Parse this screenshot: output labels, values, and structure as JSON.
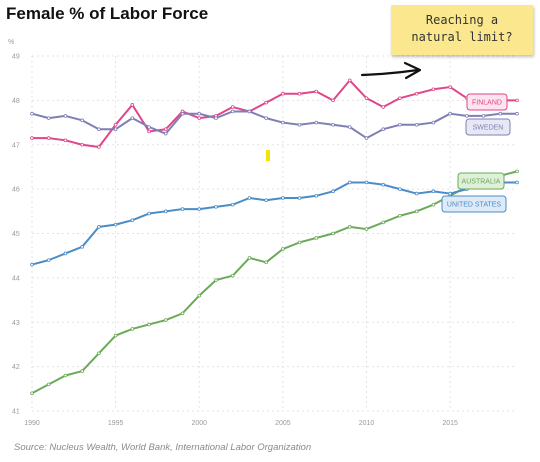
{
  "title": "Female % of Labor Force",
  "note": {
    "line1": "Reaching a",
    "line2": "natural limit?"
  },
  "source": "Source: Nucleus Wealth, World Bank, International Labor Organization",
  "colors": {
    "finland": "#e0468a",
    "sweden": "#7f7fb8",
    "australia": "#6aaa58",
    "united_states": "#4b8cc8",
    "note_bg": "#fbe88e",
    "highlight": "#f2e600"
  },
  "chart_data": {
    "type": "line",
    "title": "Female % of Labor Force",
    "xlabel": "",
    "ylabel": "",
    "xlim": [
      1990,
      2019
    ],
    "ylim": [
      41,
      49
    ],
    "grid": true,
    "x_ticks": [
      "1990",
      "1995",
      "2000",
      "2005",
      "2010",
      "2015"
    ],
    "y_ticks": [
      "41",
      "42",
      "43",
      "44",
      "45",
      "46",
      "47",
      "48",
      "49"
    ],
    "y_unit_marker": "%",
    "x": [
      1990,
      1991,
      1992,
      1993,
      1994,
      1995,
      1996,
      1997,
      1998,
      1999,
      2000,
      2001,
      2002,
      2003,
      2004,
      2005,
      2006,
      2007,
      2008,
      2009,
      2010,
      2011,
      2012,
      2013,
      2014,
      2015,
      2016,
      2017,
      2018,
      2019
    ],
    "series": [
      {
        "name": "FINLAND",
        "key": "finland",
        "values": [
          47.15,
          47.15,
          47.1,
          47.0,
          46.95,
          47.45,
          47.9,
          47.3,
          47.35,
          47.75,
          47.6,
          47.65,
          47.85,
          47.75,
          47.95,
          48.15,
          48.15,
          48.2,
          48.0,
          48.45,
          48.05,
          47.85,
          48.05,
          48.15,
          48.25,
          48.3,
          48.05,
          48.0,
          48.0,
          48.0
        ]
      },
      {
        "name": "SWEDEN",
        "key": "sweden",
        "values": [
          47.7,
          47.6,
          47.65,
          47.55,
          47.35,
          47.35,
          47.6,
          47.4,
          47.25,
          47.7,
          47.7,
          47.6,
          47.75,
          47.75,
          47.6,
          47.5,
          47.45,
          47.5,
          47.45,
          47.4,
          47.15,
          47.35,
          47.45,
          47.45,
          47.5,
          47.7,
          47.65,
          47.65,
          47.7,
          47.7
        ]
      },
      {
        "name": "AUSTRALIA",
        "key": "australia",
        "values": [
          41.4,
          41.6,
          41.8,
          41.9,
          42.3,
          42.7,
          42.85,
          42.95,
          43.05,
          43.2,
          43.6,
          43.95,
          44.05,
          44.45,
          44.35,
          44.65,
          44.8,
          44.9,
          45.0,
          45.15,
          45.1,
          45.25,
          45.4,
          45.5,
          45.65,
          45.85,
          46.05,
          46.2,
          46.3,
          46.4
        ]
      },
      {
        "name": "UNITED STATES",
        "key": "united_states",
        "values": [
          44.3,
          44.4,
          44.55,
          44.7,
          45.15,
          45.2,
          45.3,
          45.45,
          45.5,
          45.55,
          45.55,
          45.6,
          45.65,
          45.8,
          45.75,
          45.8,
          45.8,
          45.85,
          45.95,
          46.15,
          46.15,
          46.1,
          46.0,
          45.9,
          45.95,
          45.9,
          46.0,
          46.1,
          46.15,
          46.15
        ]
      }
    ],
    "legend_labels": [
      "FINLAND",
      "SWEDEN",
      "AUSTRALIA",
      "UNITED STATES"
    ]
  }
}
